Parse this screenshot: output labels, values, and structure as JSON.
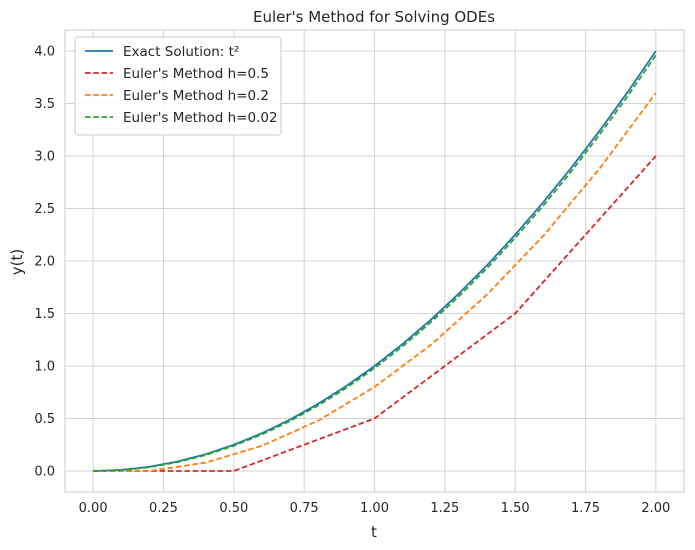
{
  "chart_data": {
    "type": "line",
    "title": "Euler's Method for Solving ODEs",
    "xlabel": "t",
    "ylabel": "y(t)",
    "xlim": [
      -0.1,
      2.1
    ],
    "ylim": [
      -0.2,
      4.2
    ],
    "xticks": [
      0.0,
      0.25,
      0.5,
      0.75,
      1.0,
      1.25,
      1.5,
      1.75,
      2.0
    ],
    "xtick_labels": [
      "0.00",
      "0.25",
      "0.50",
      "0.75",
      "1.00",
      "1.25",
      "1.50",
      "1.75",
      "2.00"
    ],
    "yticks": [
      0.0,
      0.5,
      1.0,
      1.5,
      2.0,
      2.5,
      3.0,
      3.5,
      4.0
    ],
    "ytick_labels": [
      "0.0",
      "0.5",
      "1.0",
      "1.5",
      "2.0",
      "2.5",
      "3.0",
      "3.5",
      "4.0"
    ],
    "grid": true,
    "legend_position": "upper-left",
    "series": [
      {
        "name": "Exact Solution: t²",
        "color": "#1f77b4",
        "style": "solid",
        "x": [
          0.0,
          0.1,
          0.2,
          0.3,
          0.4,
          0.5,
          0.6,
          0.7,
          0.8,
          0.9,
          1.0,
          1.1,
          1.2,
          1.3,
          1.4,
          1.5,
          1.6,
          1.7,
          1.8,
          1.9,
          2.0
        ],
        "y": [
          0.0,
          0.01,
          0.04,
          0.09,
          0.16,
          0.25,
          0.36,
          0.49,
          0.64,
          0.81,
          1.0,
          1.21,
          1.44,
          1.69,
          1.96,
          2.25,
          2.56,
          2.89,
          3.24,
          3.61,
          4.0
        ]
      },
      {
        "name": "Euler's Method h=0.5",
        "color": "#d62728",
        "style": "dashed",
        "x": [
          0.0,
          0.5,
          1.0,
          1.5,
          2.0
        ],
        "y": [
          0.0,
          0.0,
          0.5,
          1.5,
          3.0
        ]
      },
      {
        "name": "Euler's Method h=0.2",
        "color": "#ff7f0e",
        "style": "dashed",
        "x": [
          0.0,
          0.2,
          0.4,
          0.6,
          0.8,
          1.0,
          1.2,
          1.4,
          1.6,
          1.8,
          2.0
        ],
        "y": [
          0.0,
          0.0,
          0.08,
          0.24,
          0.48,
          0.8,
          1.2,
          1.68,
          2.24,
          2.88,
          3.6
        ]
      },
      {
        "name": "Euler's Method h=0.02",
        "color": "#2ca02c",
        "style": "dashed",
        "x": [
          0.0,
          0.1,
          0.2,
          0.3,
          0.4,
          0.5,
          0.6,
          0.7,
          0.8,
          0.9,
          1.0,
          1.1,
          1.2,
          1.3,
          1.4,
          1.5,
          1.6,
          1.7,
          1.8,
          1.9,
          2.0
        ],
        "y": [
          0.0,
          0.008,
          0.036,
          0.084,
          0.152,
          0.24,
          0.348,
          0.476,
          0.624,
          0.792,
          0.98,
          1.188,
          1.416,
          1.664,
          1.932,
          2.22,
          2.528,
          2.856,
          3.204,
          3.572,
          3.96
        ]
      }
    ]
  }
}
